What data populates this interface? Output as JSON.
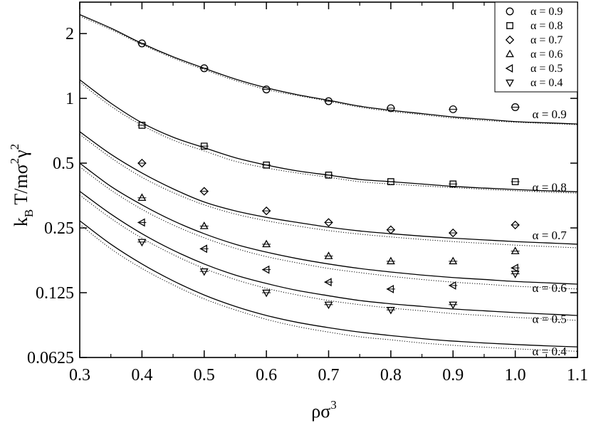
{
  "chart_data": {
    "type": "scatter",
    "xlabel": "ρσ",
    "xlabel_sup": "3",
    "ylabel": {
      "p1": "k",
      "p1_sub": "B",
      "p2": " T/mσ",
      "p2_sup": "2",
      "p3": "γ",
      "p3_sup": "2"
    },
    "y_scale": "log2",
    "xlim": [
      0.3,
      1.1
    ],
    "ylim": [
      0.0625,
      2.8
    ],
    "x_ticks": [
      0.3,
      0.4,
      0.5,
      0.6,
      0.7,
      0.8,
      0.9,
      1.0,
      1.1
    ],
    "x_tick_labels": [
      "0.3",
      "0.4",
      "0.5",
      "0.6",
      "0.7",
      "0.8",
      "0.9",
      "1.0",
      "1.1"
    ],
    "y_ticks": [
      0.0625,
      0.125,
      0.25,
      0.5,
      1,
      2
    ],
    "y_tick_labels": [
      "0.0625",
      "0.125",
      "0.25",
      "0.5",
      "1",
      "2"
    ],
    "legend_position": "top-right",
    "series": [
      {
        "name": "α = 0.9",
        "marker": "circle",
        "x": [
          0.4,
          0.5,
          0.6,
          0.7,
          0.8,
          0.9,
          1.0
        ],
        "y": [
          1.8,
          1.38,
          1.1,
          0.97,
          0.9,
          0.89,
          0.91
        ],
        "curve_label": "α = 0.9",
        "solid": [
          [
            0.3,
            2.45
          ],
          [
            0.35,
            2.12
          ],
          [
            0.4,
            1.8
          ],
          [
            0.45,
            1.56
          ],
          [
            0.5,
            1.38
          ],
          [
            0.55,
            1.23
          ],
          [
            0.6,
            1.12
          ],
          [
            0.65,
            1.04
          ],
          [
            0.7,
            0.98
          ],
          [
            0.75,
            0.92
          ],
          [
            0.8,
            0.88
          ],
          [
            0.85,
            0.85
          ],
          [
            0.9,
            0.82
          ],
          [
            0.95,
            0.8
          ],
          [
            1.0,
            0.78
          ],
          [
            1.05,
            0.77
          ],
          [
            1.1,
            0.76
          ]
        ],
        "dotted": [
          [
            0.3,
            2.41
          ],
          [
            0.35,
            2.09
          ],
          [
            0.4,
            1.78
          ],
          [
            0.45,
            1.54
          ],
          [
            0.5,
            1.36
          ],
          [
            0.55,
            1.21
          ],
          [
            0.6,
            1.1
          ],
          [
            0.65,
            1.03
          ],
          [
            0.7,
            0.97
          ],
          [
            0.75,
            0.91
          ],
          [
            0.8,
            0.87
          ],
          [
            0.85,
            0.84
          ],
          [
            0.9,
            0.81
          ],
          [
            0.95,
            0.79
          ],
          [
            1.0,
            0.775
          ],
          [
            1.05,
            0.765
          ],
          [
            1.1,
            0.755
          ]
        ]
      },
      {
        "name": "α = 0.8",
        "marker": "square",
        "x": [
          0.4,
          0.5,
          0.6,
          0.7,
          0.8,
          0.9,
          1.0
        ],
        "y": [
          0.75,
          0.6,
          0.49,
          0.44,
          0.41,
          0.4,
          0.41
        ],
        "curve_label": "α = 0.8",
        "solid": [
          [
            0.3,
            1.22
          ],
          [
            0.35,
            0.95
          ],
          [
            0.4,
            0.77
          ],
          [
            0.45,
            0.66
          ],
          [
            0.5,
            0.59
          ],
          [
            0.55,
            0.53
          ],
          [
            0.6,
            0.49
          ],
          [
            0.65,
            0.46
          ],
          [
            0.7,
            0.44
          ],
          [
            0.75,
            0.42
          ],
          [
            0.8,
            0.41
          ],
          [
            0.85,
            0.4
          ],
          [
            0.9,
            0.39
          ],
          [
            0.95,
            0.383
          ],
          [
            1.0,
            0.377
          ],
          [
            1.05,
            0.372
          ],
          [
            1.1,
            0.368
          ]
        ],
        "dotted": [
          [
            0.3,
            1.19
          ],
          [
            0.35,
            0.92
          ],
          [
            0.4,
            0.75
          ],
          [
            0.45,
            0.64
          ],
          [
            0.5,
            0.57
          ],
          [
            0.55,
            0.51
          ],
          [
            0.6,
            0.475
          ],
          [
            0.65,
            0.45
          ],
          [
            0.7,
            0.43
          ],
          [
            0.75,
            0.41
          ],
          [
            0.8,
            0.4
          ],
          [
            0.85,
            0.392
          ],
          [
            0.9,
            0.385
          ],
          [
            0.95,
            0.378
          ],
          [
            1.0,
            0.372
          ],
          [
            1.05,
            0.367
          ],
          [
            1.1,
            0.363
          ]
        ]
      },
      {
        "name": "α = 0.7",
        "marker": "diamond",
        "x": [
          0.4,
          0.5,
          0.6,
          0.7,
          0.8,
          0.9,
          1.0
        ],
        "y": [
          0.5,
          0.37,
          0.3,
          0.265,
          0.245,
          0.237,
          0.258
        ],
        "curve_label": "α = 0.7",
        "solid": [
          [
            0.3,
            0.7
          ],
          [
            0.35,
            0.55
          ],
          [
            0.4,
            0.45
          ],
          [
            0.45,
            0.38
          ],
          [
            0.5,
            0.33
          ],
          [
            0.55,
            0.3
          ],
          [
            0.6,
            0.28
          ],
          [
            0.65,
            0.265
          ],
          [
            0.7,
            0.252
          ],
          [
            0.75,
            0.242
          ],
          [
            0.8,
            0.235
          ],
          [
            0.85,
            0.229
          ],
          [
            0.9,
            0.224
          ],
          [
            0.95,
            0.22
          ],
          [
            1.0,
            0.216
          ],
          [
            1.05,
            0.213
          ],
          [
            1.1,
            0.21
          ]
        ],
        "dotted": [
          [
            0.3,
            0.68
          ],
          [
            0.35,
            0.53
          ],
          [
            0.4,
            0.43
          ],
          [
            0.45,
            0.365
          ],
          [
            0.5,
            0.32
          ],
          [
            0.55,
            0.29
          ],
          [
            0.6,
            0.27
          ],
          [
            0.65,
            0.255
          ],
          [
            0.7,
            0.243
          ],
          [
            0.75,
            0.234
          ],
          [
            0.8,
            0.227
          ],
          [
            0.85,
            0.221
          ],
          [
            0.9,
            0.216
          ],
          [
            0.95,
            0.212
          ],
          [
            1.0,
            0.208
          ],
          [
            1.05,
            0.205
          ],
          [
            1.1,
            0.202
          ]
        ]
      },
      {
        "name": "α = 0.6",
        "marker": "triangle-up",
        "x": [
          0.4,
          0.5,
          0.6,
          0.7,
          0.8,
          0.9,
          1.0
        ],
        "y": [
          0.345,
          0.255,
          0.21,
          0.185,
          0.175,
          0.175,
          0.195
        ],
        "curve_label": "α = 0.6",
        "solid": [
          [
            0.3,
            0.5
          ],
          [
            0.35,
            0.39
          ],
          [
            0.4,
            0.32
          ],
          [
            0.45,
            0.27
          ],
          [
            0.5,
            0.235
          ],
          [
            0.55,
            0.21
          ],
          [
            0.6,
            0.193
          ],
          [
            0.65,
            0.18
          ],
          [
            0.7,
            0.17
          ],
          [
            0.75,
            0.162
          ],
          [
            0.8,
            0.156
          ],
          [
            0.85,
            0.151
          ],
          [
            0.9,
            0.147
          ],
          [
            0.95,
            0.144
          ],
          [
            1.0,
            0.141
          ],
          [
            1.05,
            0.139
          ],
          [
            1.1,
            0.137
          ]
        ],
        "dotted": [
          [
            0.3,
            0.48
          ],
          [
            0.35,
            0.375
          ],
          [
            0.4,
            0.305
          ],
          [
            0.45,
            0.258
          ],
          [
            0.5,
            0.225
          ],
          [
            0.55,
            0.201
          ],
          [
            0.6,
            0.184
          ],
          [
            0.65,
            0.172
          ],
          [
            0.7,
            0.162
          ],
          [
            0.75,
            0.155
          ],
          [
            0.8,
            0.149
          ],
          [
            0.85,
            0.144
          ],
          [
            0.9,
            0.14
          ],
          [
            0.95,
            0.137
          ],
          [
            1.0,
            0.134
          ],
          [
            1.05,
            0.132
          ],
          [
            1.1,
            0.13
          ]
        ]
      },
      {
        "name": "α = 0.5",
        "marker": "triangle-left",
        "x": [
          0.4,
          0.5,
          0.6,
          0.7,
          0.8,
          0.9,
          1.0
        ],
        "y": [
          0.265,
          0.2,
          0.16,
          0.14,
          0.13,
          0.135,
          0.163
        ],
        "curve_label": "α = 0.5",
        "solid": [
          [
            0.3,
            0.37
          ],
          [
            0.35,
            0.29
          ],
          [
            0.4,
            0.235
          ],
          [
            0.45,
            0.197
          ],
          [
            0.5,
            0.17
          ],
          [
            0.55,
            0.151
          ],
          [
            0.6,
            0.138
          ],
          [
            0.65,
            0.128
          ],
          [
            0.7,
            0.121
          ],
          [
            0.75,
            0.115
          ],
          [
            0.8,
            0.111
          ],
          [
            0.85,
            0.108
          ],
          [
            0.9,
            0.105
          ],
          [
            0.95,
            0.103
          ],
          [
            1.0,
            0.101
          ],
          [
            1.05,
            0.0995
          ],
          [
            1.1,
            0.098
          ]
        ],
        "dotted": [
          [
            0.3,
            0.355
          ],
          [
            0.35,
            0.277
          ],
          [
            0.4,
            0.224
          ],
          [
            0.45,
            0.188
          ],
          [
            0.5,
            0.162
          ],
          [
            0.55,
            0.144
          ],
          [
            0.6,
            0.131
          ],
          [
            0.65,
            0.122
          ],
          [
            0.7,
            0.115
          ],
          [
            0.75,
            0.11
          ],
          [
            0.8,
            0.106
          ],
          [
            0.85,
            0.103
          ],
          [
            0.9,
            0.1
          ],
          [
            0.95,
            0.098
          ],
          [
            1.0,
            0.096
          ],
          [
            1.05,
            0.0945
          ],
          [
            1.1,
            0.093
          ]
        ]
      },
      {
        "name": "α = 0.4",
        "marker": "triangle-down",
        "x": [
          0.4,
          0.5,
          0.6,
          0.7,
          0.8,
          0.9,
          1.0
        ],
        "y": [
          0.215,
          0.157,
          0.125,
          0.11,
          0.104,
          0.11,
          0.153
        ],
        "curve_label": "α = 0.4",
        "solid": [
          [
            0.3,
            0.27
          ],
          [
            0.35,
            0.21
          ],
          [
            0.4,
            0.17
          ],
          [
            0.45,
            0.142
          ],
          [
            0.5,
            0.122
          ],
          [
            0.55,
            0.108
          ],
          [
            0.6,
            0.098
          ],
          [
            0.65,
            0.091
          ],
          [
            0.7,
            0.086
          ],
          [
            0.75,
            0.082
          ],
          [
            0.8,
            0.079
          ],
          [
            0.85,
            0.0765
          ],
          [
            0.9,
            0.0745
          ],
          [
            0.95,
            0.073
          ],
          [
            1.0,
            0.0718
          ],
          [
            1.05,
            0.0708
          ],
          [
            1.1,
            0.07
          ]
        ],
        "dotted": [
          [
            0.3,
            0.26
          ],
          [
            0.35,
            0.2
          ],
          [
            0.4,
            0.162
          ],
          [
            0.45,
            0.136
          ],
          [
            0.5,
            0.117
          ],
          [
            0.55,
            0.104
          ],
          [
            0.6,
            0.094
          ],
          [
            0.65,
            0.087
          ],
          [
            0.7,
            0.082
          ],
          [
            0.75,
            0.078
          ],
          [
            0.8,
            0.0755
          ],
          [
            0.85,
            0.073
          ],
          [
            0.9,
            0.0712
          ],
          [
            0.95,
            0.0698
          ],
          [
            1.0,
            0.0686
          ],
          [
            1.05,
            0.0676
          ],
          [
            1.1,
            0.0668
          ]
        ]
      }
    ],
    "curve_label_x": 1.055,
    "curve_label_y": [
      0.84,
      0.385,
      0.23,
      0.131,
      0.094,
      0.0665
    ]
  }
}
